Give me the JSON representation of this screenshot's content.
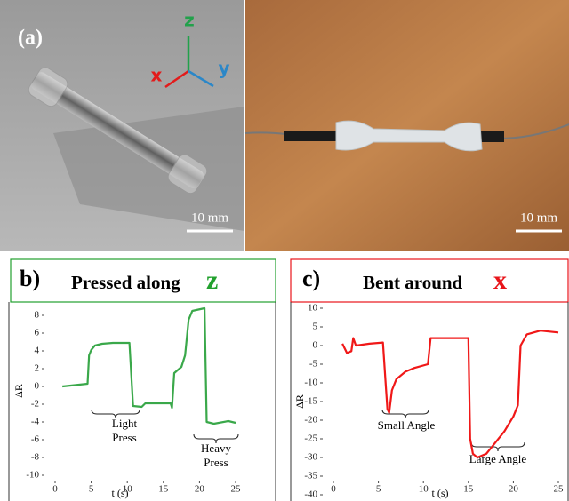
{
  "panel_a": {
    "label": "(a)",
    "axes": {
      "z": "z",
      "x": "x",
      "y": "y"
    },
    "scale_bars": [
      "10 mm",
      "10 mm"
    ]
  },
  "chart_data": [
    {
      "type": "line",
      "panel_label": "b)",
      "title": "Pressed along",
      "title_axis": "z",
      "title_axis_color": "#22a12e",
      "x_label": "t (s)",
      "y_label": "ΔR",
      "color": "#3aa84a",
      "xlim": [
        0,
        25
      ],
      "xticks": [
        0,
        5,
        10,
        15,
        20,
        25
      ],
      "ylim": [
        -10,
        9
      ],
      "yticks": [
        -10,
        -8,
        -6,
        -4,
        -2,
        0,
        2,
        4,
        6,
        8
      ],
      "x": [
        1,
        4.5,
        4.7,
        5,
        5.5,
        6.5,
        8,
        10.3,
        10.8,
        12,
        12.5,
        16,
        16.2,
        16.5,
        17.5,
        18,
        18.5,
        19,
        20.7,
        21,
        22,
        24,
        25
      ],
      "values": [
        0,
        0.3,
        3.5,
        4.1,
        4.6,
        4.8,
        4.9,
        4.9,
        -2.2,
        -2.3,
        -1.9,
        -1.9,
        -2.4,
        1.5,
        2.2,
        3.5,
        7.5,
        8.5,
        8.8,
        -4.0,
        -4.2,
        -3.9,
        -4.1
      ],
      "annotations": [
        "Light",
        "Press",
        "Heavy",
        "Press"
      ]
    },
    {
      "type": "line",
      "panel_label": "c)",
      "title": "Bent around",
      "title_axis": "x",
      "title_axis_color": "#e8141a",
      "x_label": "t (s)",
      "y_label": "ΔR",
      "color": "#f01818",
      "xlim": [
        0,
        25
      ],
      "xticks": [
        0,
        5,
        10,
        15,
        20,
        25
      ],
      "ylim": [
        -40,
        10
      ],
      "yticks": [
        -40,
        -35,
        -30,
        -25,
        -20,
        -15,
        -10,
        -5,
        0,
        5,
        10
      ],
      "x": [
        1,
        1.5,
        2,
        2.2,
        2.5,
        4,
        5.5,
        5.8,
        6,
        6.2,
        6.5,
        7,
        8,
        9,
        10.5,
        10.8,
        12,
        15,
        15.2,
        15.5,
        16,
        17,
        18,
        19,
        20,
        20.5,
        20.8,
        21.5,
        23,
        25
      ],
      "values": [
        0.5,
        -2,
        -1.5,
        2,
        0,
        0.5,
        0.8,
        -10,
        -17,
        -18,
        -12,
        -9,
        -7,
        -6,
        -5,
        2,
        2,
        2,
        -25,
        -29,
        -30,
        -29,
        -26,
        -23,
        -19,
        -16,
        0,
        3,
        4,
        3.5
      ],
      "annotations": [
        "Small Angle",
        "Large Angle"
      ]
    }
  ]
}
